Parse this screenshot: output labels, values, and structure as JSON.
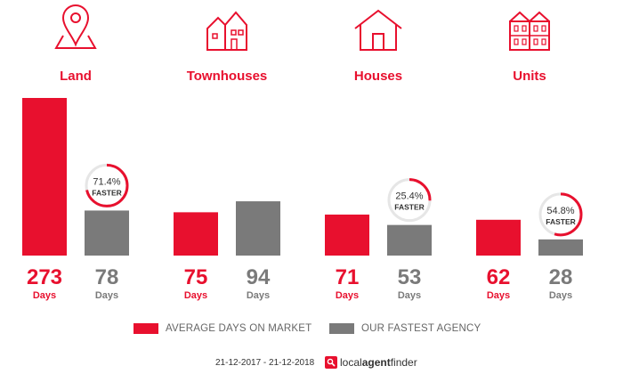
{
  "colors": {
    "avg": "#e8102e",
    "fast": "#7a7a7a",
    "icon": "#e8102e",
    "ring_track": "#e6e6e6"
  },
  "categories": [
    {
      "label": "Land",
      "icon": "map-pin-icon"
    },
    {
      "label": "Townhouses",
      "icon": "townhouses-icon"
    },
    {
      "label": "Houses",
      "icon": "house-icon"
    },
    {
      "label": "Units",
      "icon": "units-icon"
    }
  ],
  "chart_data": {
    "type": "bar",
    "categories": [
      "Land",
      "Townhouses",
      "Houses",
      "Units"
    ],
    "series": [
      {
        "name": "AVERAGE DAYS ON MARKET",
        "values": [
          273,
          75,
          71,
          62
        ]
      },
      {
        "name": "OUR FASTEST AGENCY",
        "values": [
          78,
          94,
          53,
          28
        ]
      }
    ],
    "value_unit_label": "Days",
    "badges": [
      {
        "category": "Land",
        "text": "71.4%",
        "sub": "FASTER",
        "fraction": 0.714
      },
      {
        "category": "Townhouses",
        "text": "",
        "sub": "",
        "fraction": null
      },
      {
        "category": "Houses",
        "text": "25.4%",
        "sub": "FASTER",
        "fraction": 0.254
      },
      {
        "category": "Units",
        "text": "54.8%",
        "sub": "FASTER",
        "fraction": 0.548
      }
    ],
    "ylim": [
      0,
      273
    ],
    "grid": false,
    "legend_position": "bottom"
  },
  "legend": {
    "avg_label": "AVERAGE DAYS ON MARKET",
    "fast_label": "OUR FASTEST AGENCY"
  },
  "footer": {
    "date_range": "21-12-2017 - 21-12-2018",
    "brand_prefix": "local",
    "brand_bold": "agent",
    "brand_suffix": "finder"
  }
}
